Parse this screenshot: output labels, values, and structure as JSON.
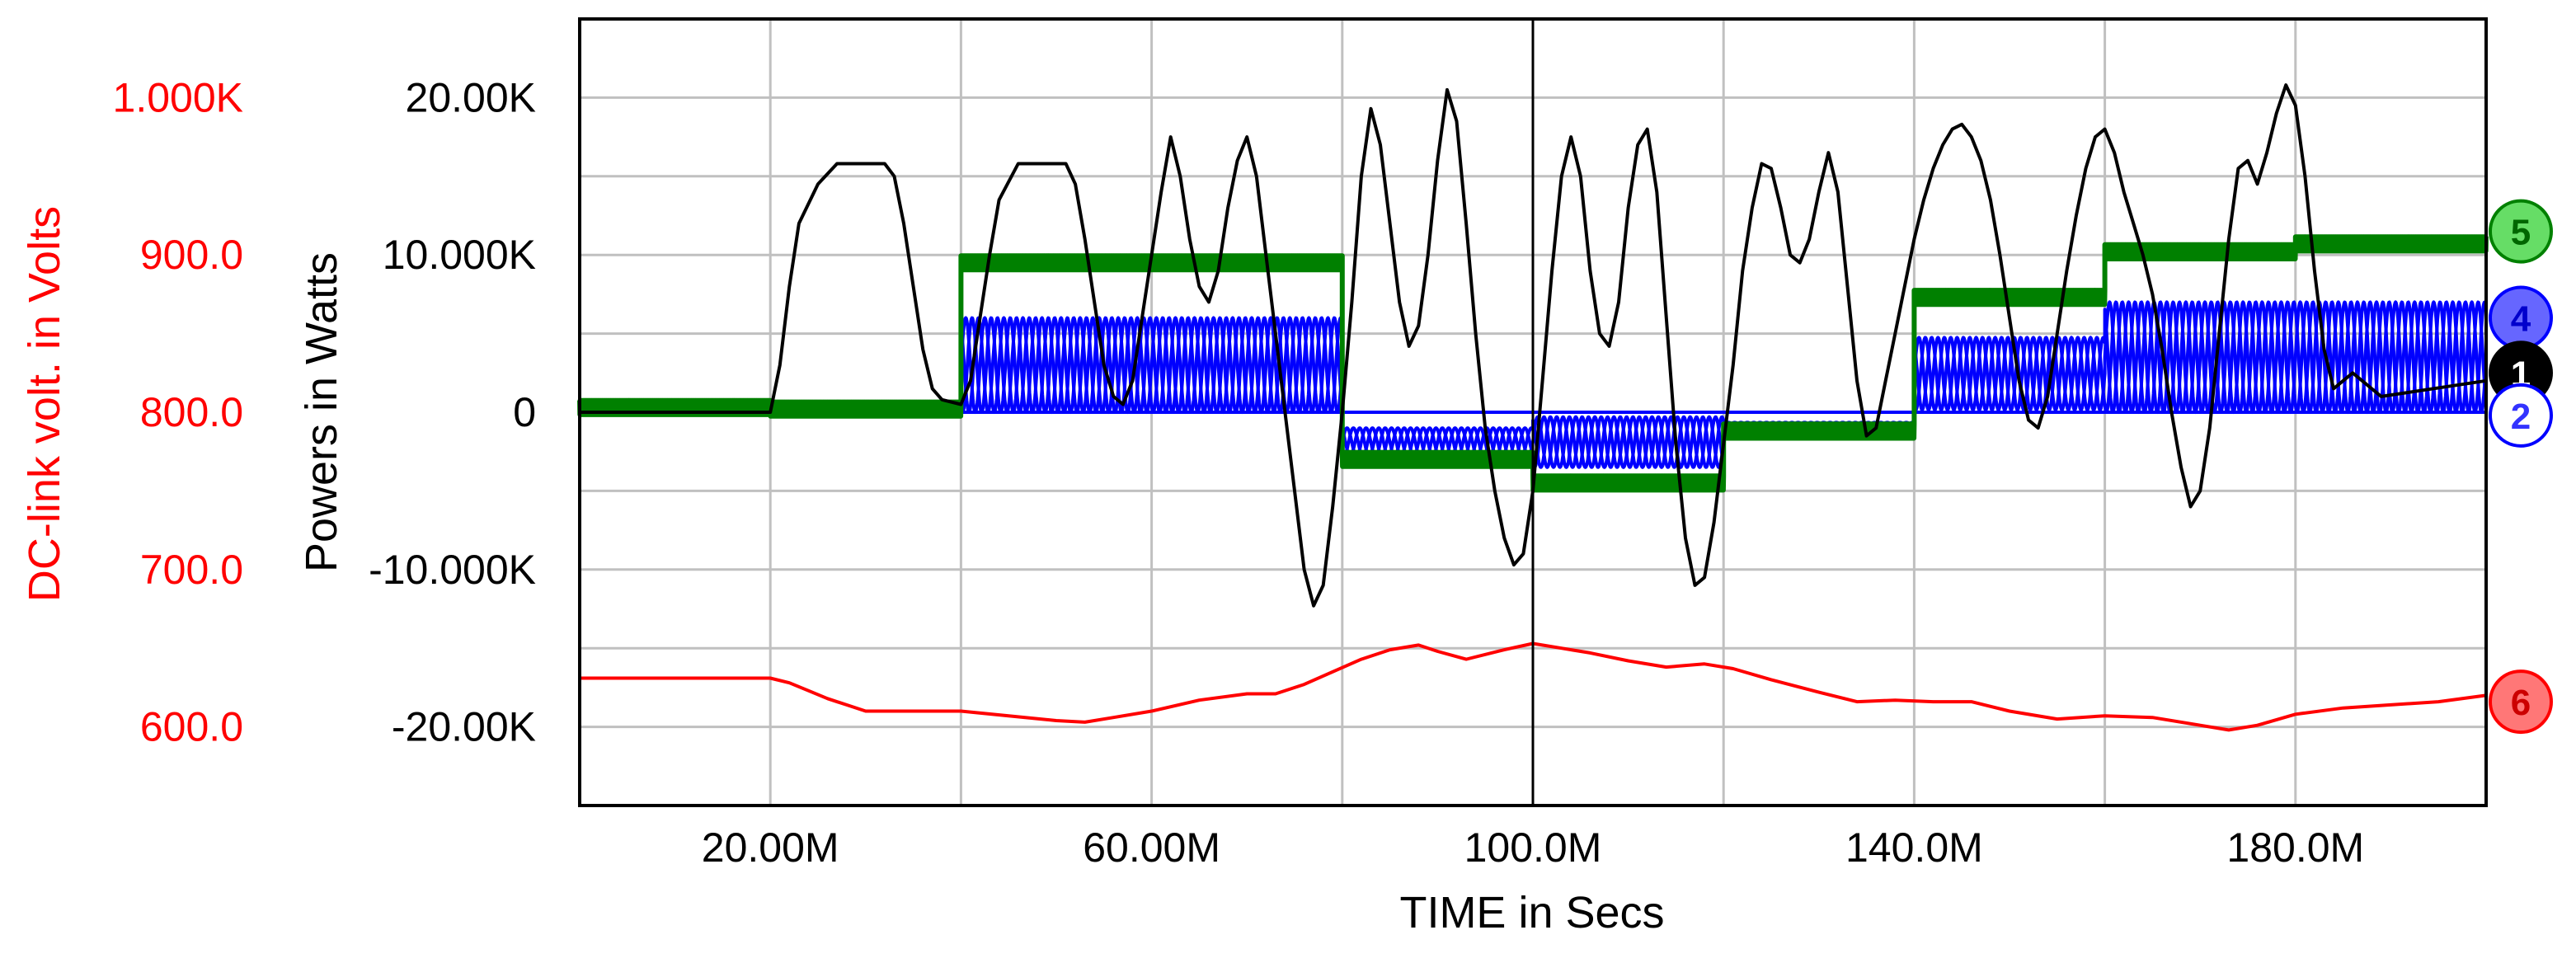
{
  "chart_data": {
    "type": "line",
    "xlabel": "TIME in Secs",
    "ylabel": "Powers  in Watts",
    "y2label": "DC-link volt. in Volts",
    "xlim": [
      0.0,
      0.2
    ],
    "ylim": [
      -25000,
      25000
    ],
    "y2lim": [
      550,
      1050
    ],
    "x_ticks": [
      0.02,
      0.06,
      0.1,
      0.14,
      0.18
    ],
    "x_tick_labels": [
      "20.00M",
      "60.00M",
      "100.0M",
      "140.0M",
      "180.0M"
    ],
    "y_ticks": [
      20000,
      10000,
      0,
      -10000,
      -20000
    ],
    "y_tick_labels": [
      "20.00K",
      "10.000K",
      "0",
      "-10.000K",
      "-20.00K"
    ],
    "y2_ticks": [
      1000,
      900,
      800,
      700,
      600
    ],
    "y2_tick_labels": [
      "1.000K",
      "900.0",
      "800.0",
      "700.0",
      "600.0"
    ],
    "grid": true,
    "series": [
      {
        "marker": "1",
        "color": "#000000",
        "axis": "left",
        "points": [
          [
            0,
            0
          ],
          [
            0.02,
            0
          ],
          [
            0.021,
            3000
          ],
          [
            0.022,
            8000
          ],
          [
            0.023,
            12000
          ],
          [
            0.025,
            14500
          ],
          [
            0.027,
            15800
          ],
          [
            0.032,
            15800
          ],
          [
            0.033,
            15000
          ],
          [
            0.034,
            12000
          ],
          [
            0.035,
            8000
          ],
          [
            0.036,
            4000
          ],
          [
            0.037,
            1500
          ],
          [
            0.038,
            800
          ],
          [
            0.04,
            500
          ],
          [
            0.041,
            2000
          ],
          [
            0.042,
            6000
          ],
          [
            0.043,
            10000
          ],
          [
            0.044,
            13500
          ],
          [
            0.046,
            15800
          ],
          [
            0.051,
            15800
          ],
          [
            0.052,
            14500
          ],
          [
            0.053,
            11000
          ],
          [
            0.054,
            7000
          ],
          [
            0.055,
            3000
          ],
          [
            0.056,
            1000
          ],
          [
            0.057,
            500
          ],
          [
            0.058,
            2000
          ],
          [
            0.059,
            6000
          ],
          [
            0.06,
            10000
          ],
          [
            0.061,
            14000
          ],
          [
            0.062,
            17500
          ],
          [
            0.063,
            15000
          ],
          [
            0.064,
            11000
          ],
          [
            0.065,
            8000
          ],
          [
            0.066,
            7000
          ],
          [
            0.067,
            9000
          ],
          [
            0.068,
            13000
          ],
          [
            0.069,
            16000
          ],
          [
            0.07,
            17500
          ],
          [
            0.071,
            15000
          ],
          [
            0.072,
            10000
          ],
          [
            0.073,
            5000
          ],
          [
            0.074,
            0
          ],
          [
            0.075,
            -5000
          ],
          [
            0.076,
            -10000
          ],
          [
            0.077,
            -12300
          ],
          [
            0.078,
            -11000
          ],
          [
            0.079,
            -6000
          ],
          [
            0.08,
            0
          ],
          [
            0.081,
            7000
          ],
          [
            0.082,
            15000
          ],
          [
            0.083,
            19300
          ],
          [
            0.084,
            17000
          ],
          [
            0.085,
            12000
          ],
          [
            0.086,
            7000
          ],
          [
            0.087,
            4200
          ],
          [
            0.088,
            5500
          ],
          [
            0.089,
            10000
          ],
          [
            0.09,
            16000
          ],
          [
            0.091,
            20500
          ],
          [
            0.092,
            18500
          ],
          [
            0.093,
            12000
          ],
          [
            0.094,
            5000
          ],
          [
            0.095,
            -1000
          ],
          [
            0.096,
            -5000
          ],
          [
            0.097,
            -8000
          ],
          [
            0.098,
            -9700
          ],
          [
            0.099,
            -9000
          ],
          [
            0.1,
            -5000
          ],
          [
            0.101,
            2000
          ],
          [
            0.102,
            9000
          ],
          [
            0.103,
            15000
          ],
          [
            0.104,
            17500
          ],
          [
            0.105,
            15000
          ],
          [
            0.106,
            9000
          ],
          [
            0.107,
            5000
          ],
          [
            0.108,
            4200
          ],
          [
            0.109,
            7000
          ],
          [
            0.11,
            13000
          ],
          [
            0.111,
            17000
          ],
          [
            0.112,
            18000
          ],
          [
            0.113,
            14000
          ],
          [
            0.114,
            6000
          ],
          [
            0.115,
            -2000
          ],
          [
            0.116,
            -8000
          ],
          [
            0.117,
            -11000
          ],
          [
            0.118,
            -10500
          ],
          [
            0.119,
            -7000
          ],
          [
            0.12,
            -2000
          ],
          [
            0.121,
            3000
          ],
          [
            0.122,
            9000
          ],
          [
            0.123,
            13000
          ],
          [
            0.124,
            15800
          ],
          [
            0.125,
            15500
          ],
          [
            0.126,
            13000
          ],
          [
            0.127,
            10000
          ],
          [
            0.128,
            9500
          ],
          [
            0.129,
            11000
          ],
          [
            0.13,
            14000
          ],
          [
            0.131,
            16500
          ],
          [
            0.132,
            14000
          ],
          [
            0.133,
            8000
          ],
          [
            0.134,
            2000
          ],
          [
            0.135,
            -1500
          ],
          [
            0.136,
            -1000
          ],
          [
            0.137,
            2000
          ],
          [
            0.138,
            5000
          ],
          [
            0.139,
            8000
          ],
          [
            0.14,
            11000
          ],
          [
            0.141,
            13500
          ],
          [
            0.142,
            15500
          ],
          [
            0.143,
            17000
          ],
          [
            0.144,
            18000
          ],
          [
            0.145,
            18300
          ],
          [
            0.146,
            17500
          ],
          [
            0.147,
            16000
          ],
          [
            0.148,
            13500
          ],
          [
            0.149,
            10000
          ],
          [
            0.15,
            6000
          ],
          [
            0.151,
            2000
          ],
          [
            0.152,
            -500
          ],
          [
            0.153,
            -1000
          ],
          [
            0.154,
            1000
          ],
          [
            0.155,
            5000
          ],
          [
            0.156,
            9000
          ],
          [
            0.157,
            12500
          ],
          [
            0.158,
            15500
          ],
          [
            0.159,
            17500
          ],
          [
            0.16,
            18000
          ],
          [
            0.161,
            16500
          ],
          [
            0.162,
            14000
          ],
          [
            0.163,
            12000
          ],
          [
            0.164,
            10000
          ],
          [
            0.165,
            7500
          ],
          [
            0.166,
            4000
          ],
          [
            0.167,
            0
          ],
          [
            0.168,
            -3500
          ],
          [
            0.169,
            -6000
          ],
          [
            0.17,
            -5000
          ],
          [
            0.171,
            -1000
          ],
          [
            0.172,
            5000
          ],
          [
            0.173,
            11000
          ],
          [
            0.174,
            15500
          ],
          [
            0.175,
            16000
          ],
          [
            0.176,
            14500
          ],
          [
            0.177,
            16500
          ],
          [
            0.178,
            19000
          ],
          [
            0.179,
            20800
          ],
          [
            0.18,
            19500
          ],
          [
            0.181,
            15000
          ],
          [
            0.182,
            9000
          ],
          [
            0.183,
            4000
          ],
          [
            0.184,
            1500
          ],
          [
            0.185,
            2000
          ],
          [
            0.186,
            2500
          ],
          [
            0.188,
            1500
          ],
          [
            0.189,
            1000
          ],
          [
            0.2,
            2000
          ]
        ]
      },
      {
        "marker": "2",
        "color": "#0000ff",
        "axis": "left",
        "points": [
          [
            0,
            0
          ],
          [
            0.2,
            0
          ]
        ]
      },
      {
        "marker": "4",
        "color": "#0000ff",
        "axis": "left",
        "segments": [
          {
            "t0": 0.0,
            "t1": 0.04,
            "base": 0,
            "amp": 0,
            "phase": 0
          },
          {
            "t0": 0.04,
            "t1": 0.08,
            "base": 3000,
            "amp": 3000,
            "phase": 0
          },
          {
            "t0": 0.08,
            "t1": 0.1,
            "base": -1900,
            "amp": 900,
            "phase": 0
          },
          {
            "t0": 0.1,
            "t1": 0.12,
            "base": -1900,
            "amp": 1600,
            "phase": 0
          },
          {
            "t0": 0.12,
            "t1": 0.14,
            "base": -800,
            "amp": 150,
            "phase": 0
          },
          {
            "t0": 0.14,
            "t1": 0.16,
            "base": 2450,
            "amp": 2300,
            "phase": 0
          },
          {
            "t0": 0.16,
            "t1": 0.2,
            "base": 3500,
            "amp": 3500,
            "phase": 0
          }
        ],
        "cycles_per_ms": 0.5
      },
      {
        "marker": "5",
        "color": "#008000",
        "axis": "left",
        "levels": [
          {
            "t0": 0.0,
            "t1": 0.02,
            "value": 300
          },
          {
            "t0": 0.02,
            "t1": 0.04,
            "value": 200
          },
          {
            "t0": 0.04,
            "t1": 0.08,
            "value": 9500
          },
          {
            "t0": 0.08,
            "t1": 0.1,
            "value": -3000
          },
          {
            "t0": 0.1,
            "t1": 0.12,
            "value": -4500
          },
          {
            "t0": 0.12,
            "t1": 0.14,
            "value": -1200
          },
          {
            "t0": 0.14,
            "t1": 0.16,
            "value": 7300
          },
          {
            "t0": 0.16,
            "t1": 0.18,
            "value": 10200
          },
          {
            "t0": 0.18,
            "t1": 0.2,
            "value": 10700
          }
        ]
      },
      {
        "marker": "6",
        "color": "#ff0000",
        "axis": "right",
        "points": [
          [
            0,
            631
          ],
          [
            0.02,
            631
          ],
          [
            0.022,
            628
          ],
          [
            0.024,
            623
          ],
          [
            0.026,
            618
          ],
          [
            0.028,
            614
          ],
          [
            0.03,
            610
          ],
          [
            0.04,
            610
          ],
          [
            0.045,
            607
          ],
          [
            0.05,
            604
          ],
          [
            0.053,
            603
          ],
          [
            0.056,
            606
          ],
          [
            0.06,
            610
          ],
          [
            0.065,
            617
          ],
          [
            0.07,
            621
          ],
          [
            0.073,
            621
          ],
          [
            0.076,
            627
          ],
          [
            0.079,
            635
          ],
          [
            0.082,
            643
          ],
          [
            0.085,
            649
          ],
          [
            0.088,
            652
          ],
          [
            0.09,
            648
          ],
          [
            0.093,
            643
          ],
          [
            0.097,
            649
          ],
          [
            0.1,
            653
          ],
          [
            0.103,
            650
          ],
          [
            0.106,
            647
          ],
          [
            0.11,
            642
          ],
          [
            0.114,
            638
          ],
          [
            0.118,
            640
          ],
          [
            0.121,
            637
          ],
          [
            0.125,
            630
          ],
          [
            0.13,
            622
          ],
          [
            0.134,
            616
          ],
          [
            0.138,
            617
          ],
          [
            0.142,
            616
          ],
          [
            0.146,
            616
          ],
          [
            0.15,
            610
          ],
          [
            0.155,
            605
          ],
          [
            0.16,
            607
          ],
          [
            0.165,
            606
          ],
          [
            0.17,
            601
          ],
          [
            0.173,
            598
          ],
          [
            0.176,
            601
          ],
          [
            0.18,
            608
          ],
          [
            0.185,
            612
          ],
          [
            0.19,
            614
          ],
          [
            0.195,
            616
          ],
          [
            0.2,
            620
          ]
        ]
      }
    ],
    "markers": [
      {
        "label": "5",
        "value": 11500,
        "fill": "#66dd66",
        "text_color": "#006600",
        "border": "#008000"
      },
      {
        "label": "4",
        "value": 6000,
        "fill": "#6666ff",
        "text_color": "#0000cc",
        "border": "#0000ff"
      },
      {
        "label": "1",
        "value": 2500,
        "fill": "#000000",
        "text_color": "#ffffff",
        "border": "#000000"
      },
      {
        "label": "2",
        "value": -200,
        "fill": "#ffffff",
        "text_color": "#3333ff",
        "border": "#0000ff"
      },
      {
        "label": "6",
        "value_right": 616,
        "fill": "#ff7777",
        "text_color": "#cc0000",
        "border": "#ff0000"
      }
    ]
  },
  "colors": {
    "grid": "#c0c0c0",
    "frame": "#000000",
    "left_axis": "#ff0000",
    "right_axis": "#000000"
  }
}
